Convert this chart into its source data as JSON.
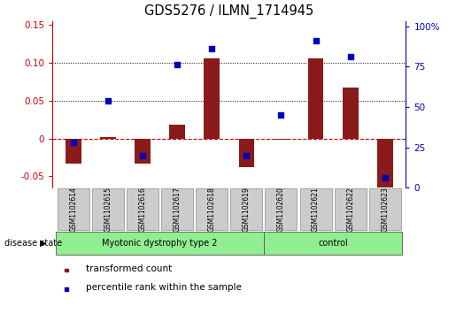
{
  "title": "GDS5276 / ILMN_1714945",
  "samples": [
    "GSM1102614",
    "GSM1102615",
    "GSM1102616",
    "GSM1102617",
    "GSM1102618",
    "GSM1102619",
    "GSM1102620",
    "GSM1102621",
    "GSM1102622",
    "GSM1102623"
  ],
  "group1_name": "Myotonic dystrophy type 2",
  "group1_indices": [
    0,
    1,
    2,
    3,
    4,
    5
  ],
  "group2_name": "control",
  "group2_indices": [
    6,
    7,
    8,
    9
  ],
  "transformed_count": [
    -0.033,
    0.002,
    -0.033,
    0.018,
    0.105,
    -0.038,
    -0.002,
    0.105,
    0.067,
    -0.065
  ],
  "percentile_rank": [
    0.28,
    0.54,
    0.2,
    0.76,
    0.86,
    0.2,
    0.45,
    0.91,
    0.81,
    0.06
  ],
  "ylim_left": [
    -0.065,
    0.155
  ],
  "ylim_right": [
    0,
    1.033
  ],
  "yticks_left": [
    -0.05,
    0.0,
    0.05,
    0.1,
    0.15
  ],
  "yticks_right": [
    0,
    0.25,
    0.5,
    0.75,
    1.0
  ],
  "ytick_labels_right": [
    "0",
    "25",
    "50",
    "75",
    "100%"
  ],
  "ytick_labels_left": [
    "-0.05",
    "0",
    "0.05",
    "0.10",
    "0.15"
  ],
  "bar_color": "#8B1A1A",
  "dot_color": "#0000BB",
  "zero_line_color": "#CC0000",
  "grid_color": "#000000",
  "group_fill_color": "#90EE90",
  "legend_bar_label": "transformed count",
  "legend_dot_label": "percentile rank within the sample",
  "disease_state_label": "disease state",
  "sample_box_color": "#CCCCCC",
  "dotted_line_values": [
    0.05,
    0.1
  ]
}
